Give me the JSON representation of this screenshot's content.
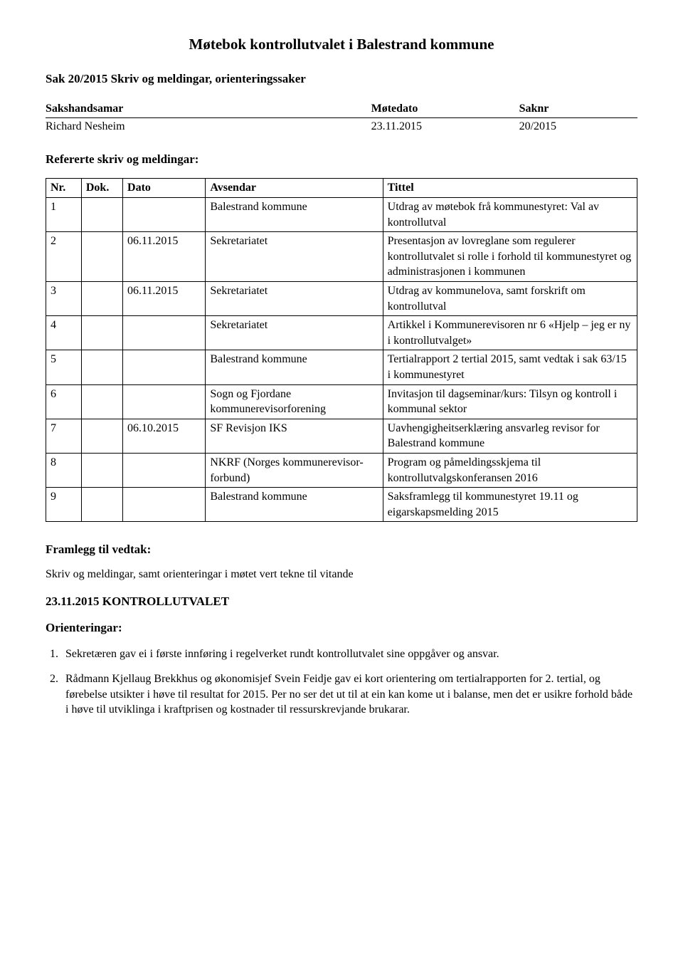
{
  "page": {
    "title": "Møtebok kontrollutvalet i Balestrand kommune",
    "sak_heading": "Sak 20/2015 Skriv og meldingar, orienteringssaker",
    "meta": {
      "headers": {
        "sakshandsamar": "Sakshandsamar",
        "motedato": "Møtedato",
        "saknr": "Saknr"
      },
      "row": {
        "sakshandsamar": "Richard Nesheim",
        "motedato": "23.11.2015",
        "saknr": "20/2015"
      }
    },
    "referat_heading": "Refererte skriv og meldingar:",
    "table": {
      "headers": {
        "nr": "Nr.",
        "dok": "Dok.",
        "dato": "Dato",
        "avsendar": "Avsendar",
        "tittel": "Tittel"
      },
      "rows": [
        {
          "nr": "1",
          "dok": "",
          "dato": "",
          "avsendar": "Balestrand kommune",
          "tittel": "Utdrag av møtebok frå kommunestyret: Val av kontrollutval"
        },
        {
          "nr": "2",
          "dok": "",
          "dato": "06.11.2015",
          "avsendar": "Sekretariatet",
          "tittel": "Presentasjon av lovreglane som regulerer kontrollutvalet si rolle i forhold til kommunestyret og administrasjonen i kommunen"
        },
        {
          "nr": "3",
          "dok": "",
          "dato": "06.11.2015",
          "avsendar": "Sekretariatet",
          "tittel": "Utdrag av kommunelova, samt forskrift om kontrollutval"
        },
        {
          "nr": "4",
          "dok": "",
          "dato": "",
          "avsendar": "Sekretariatet",
          "tittel": "Artikkel i Kommunerevisoren nr 6 «Hjelp – jeg er ny i kontrollutvalget»"
        },
        {
          "nr": "5",
          "dok": "",
          "dato": "",
          "avsendar": "Balestrand kommune",
          "tittel": "Tertialrapport 2 tertial 2015, samt vedtak i sak 63/15 i kommunestyret"
        },
        {
          "nr": "6",
          "dok": "",
          "dato": "",
          "avsendar": "Sogn og Fjordane kommunerevisorforening",
          "tittel": "Invitasjon til dagseminar/kurs: Tilsyn og kontroll i kommunal sektor"
        },
        {
          "nr": "7",
          "dok": "",
          "dato": "06.10.2015",
          "avsendar": "SF Revisjon IKS",
          "tittel": "Uavhengigheitserklæring ansvarleg revisor for Balestrand kommune"
        },
        {
          "nr": "8",
          "dok": "",
          "dato": "",
          "avsendar": "NKRF (Norges kommunerevisor-forbund)",
          "tittel": "Program og påmeldingsskjema til kontrollutvalgskonferansen 2016"
        },
        {
          "nr": "9",
          "dok": "",
          "dato": "",
          "avsendar": "Balestrand kommune",
          "tittel": "Saksframlegg til kommunestyret 19.11 og eigarskapsmelding 2015"
        }
      ]
    },
    "framlegg": {
      "heading": "Framlegg til vedtak:",
      "text": "Skriv og meldingar, samt orienteringar i møtet vert tekne til vitande"
    },
    "date_heading": "23.11.2015 KONTROLLUTVALET",
    "orienteringar": {
      "heading": "Orienteringar:",
      "items": [
        "Sekretæren gav ei i første innføring i regelverket rundt kontrollutvalet sine oppgåver og ansvar.",
        "Rådmann Kjellaug Brekkhus og økonomisjef Svein Feidje gav ei kort orientering om tertialrapporten for 2. tertial, og førebelse utsikter i høve til resultat for 2015. Per no ser det ut til at ein kan kome ut i balanse, men det er usikre forhold både i høve til utviklinga i kraftprisen og kostnader til ressurskrevjande brukarar."
      ]
    }
  }
}
